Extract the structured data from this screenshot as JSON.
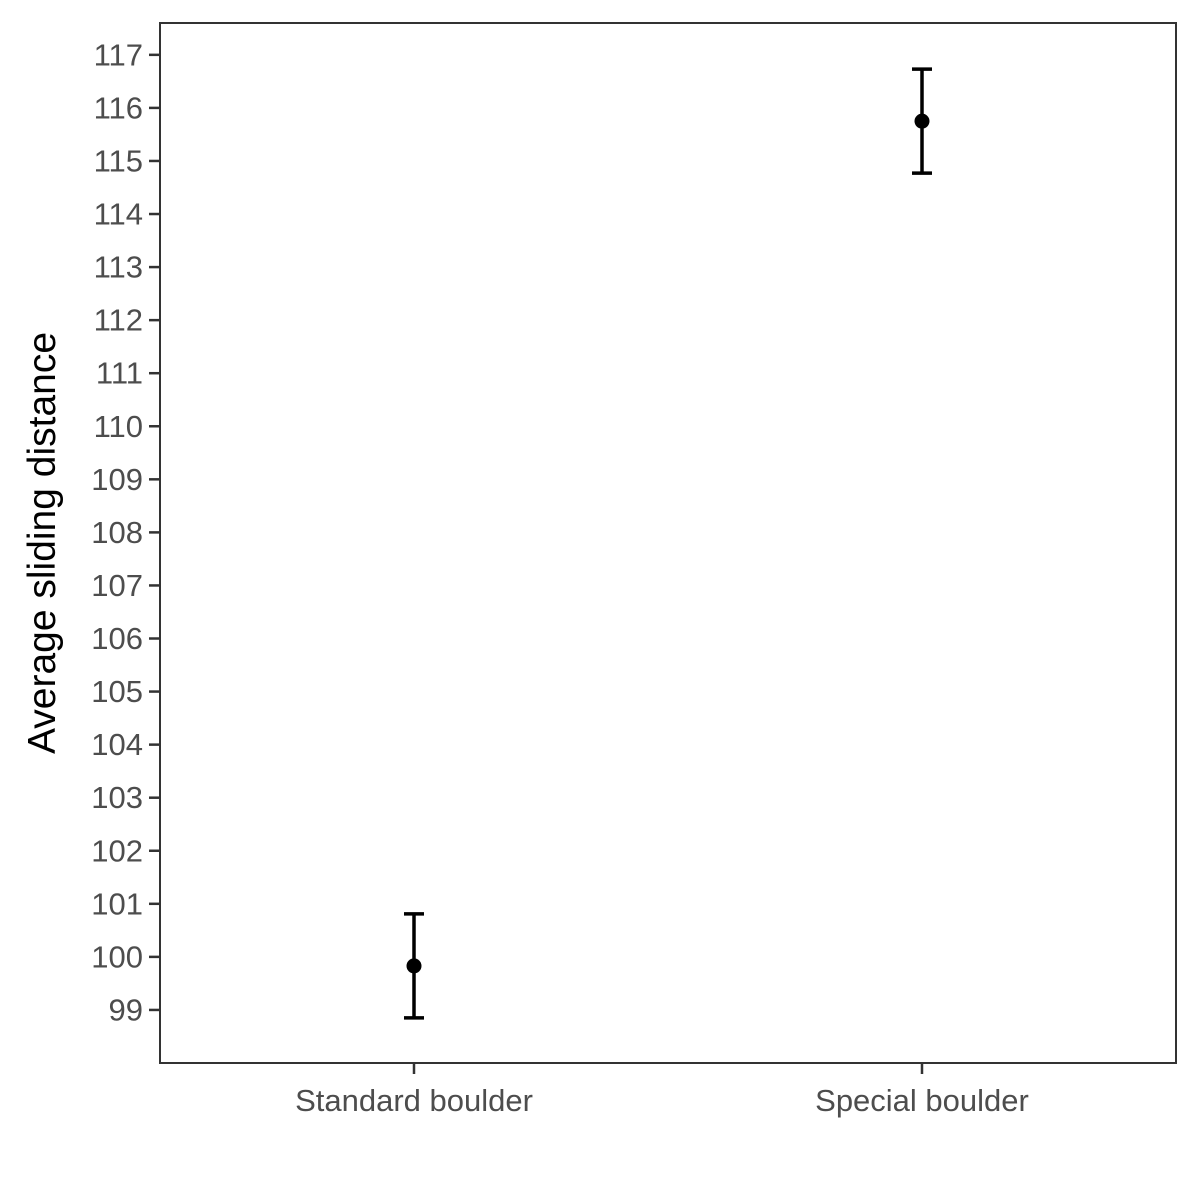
{
  "chart_data": {
    "type": "errorbar",
    "title": "",
    "xlabel": "",
    "ylabel": "Average sliding distance",
    "categories": [
      "Standard boulder",
      "Special boulder"
    ],
    "series": [
      {
        "values": [
          99.83,
          115.75
        ],
        "lower": [
          98.85,
          114.77
        ],
        "upper": [
          100.81,
          116.73
        ]
      }
    ],
    "ylim": [
      98.0,
      117.6
    ],
    "yticks": [
      99,
      100,
      101,
      102,
      103,
      104,
      105,
      106,
      107,
      108,
      109,
      110,
      111,
      112,
      113,
      114,
      115,
      116,
      117
    ],
    "grid": false,
    "legend": "none",
    "colors": {
      "point": "#000000",
      "errorbar": "#000000",
      "panel_border": "#333333",
      "tick_label": "#4d4d4d"
    }
  }
}
